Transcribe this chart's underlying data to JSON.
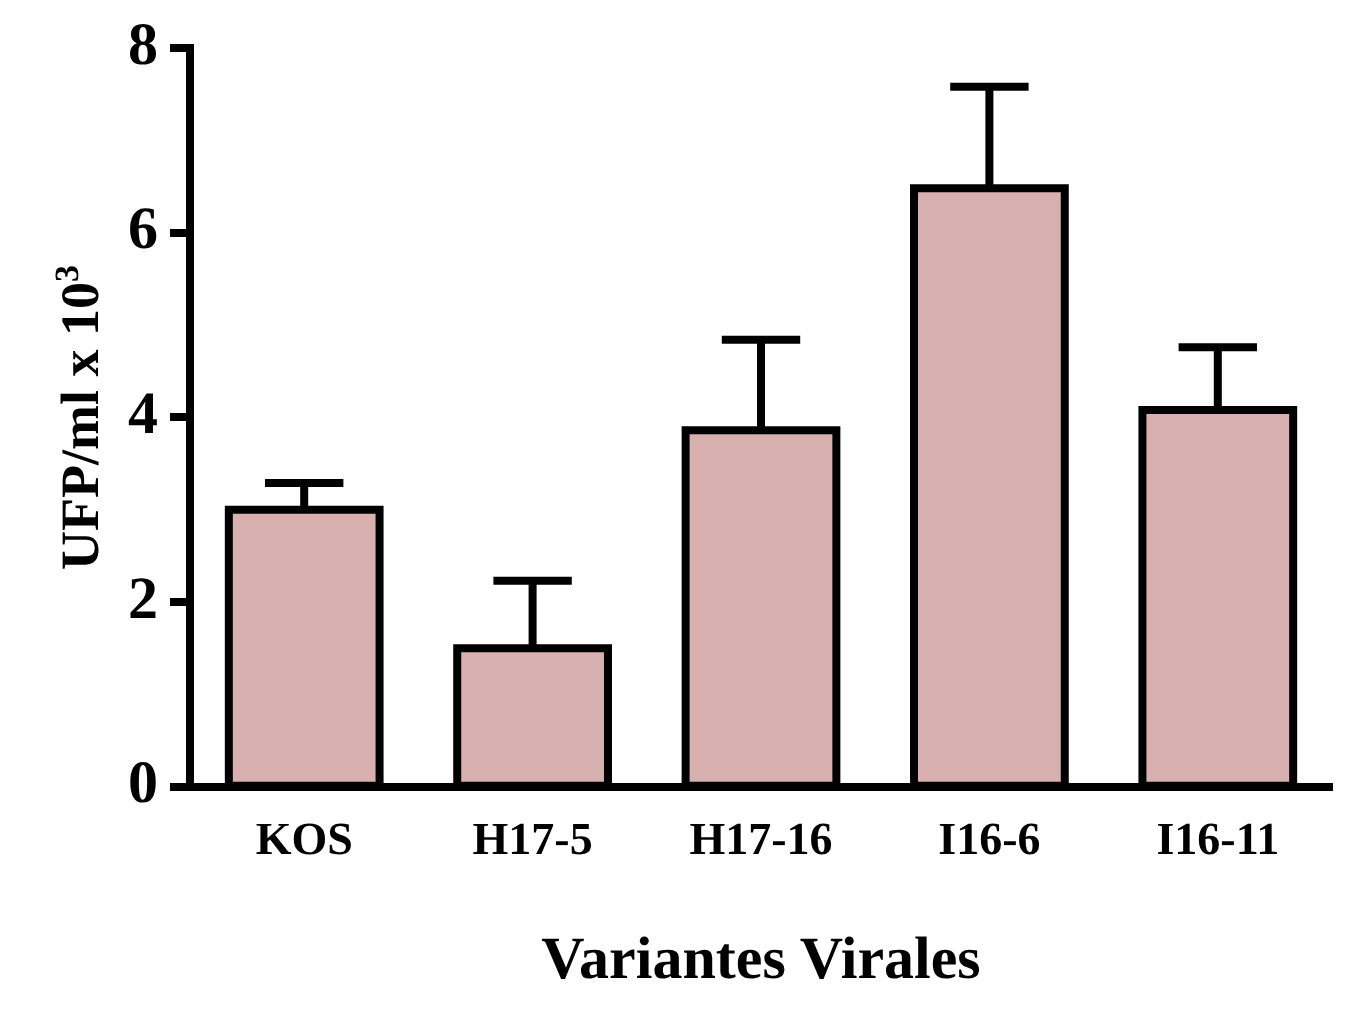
{
  "chart_data": {
    "type": "bar",
    "xlabel": "Variantes Virales",
    "ylabel": "UFP/ml x 10$^{3}$",
    "categories": [
      "KOS",
      "H17-5",
      "H17-16",
      "I16-6",
      "I16-11"
    ],
    "values": [
      3.0,
      1.5,
      3.86,
      6.48,
      4.08
    ],
    "errors": [
      [
        3.0,
        3.29
      ],
      [
        1.5,
        2.23
      ],
      [
        3.86,
        4.84
      ],
      [
        6.48,
        7.58
      ],
      [
        4.08,
        4.76
      ]
    ],
    "color": "#d8b0b0",
    "ylim": [
      0,
      8
    ],
    "yticks": [
      0,
      2,
      4,
      6,
      8
    ],
    "grid": false,
    "legend": false
  }
}
